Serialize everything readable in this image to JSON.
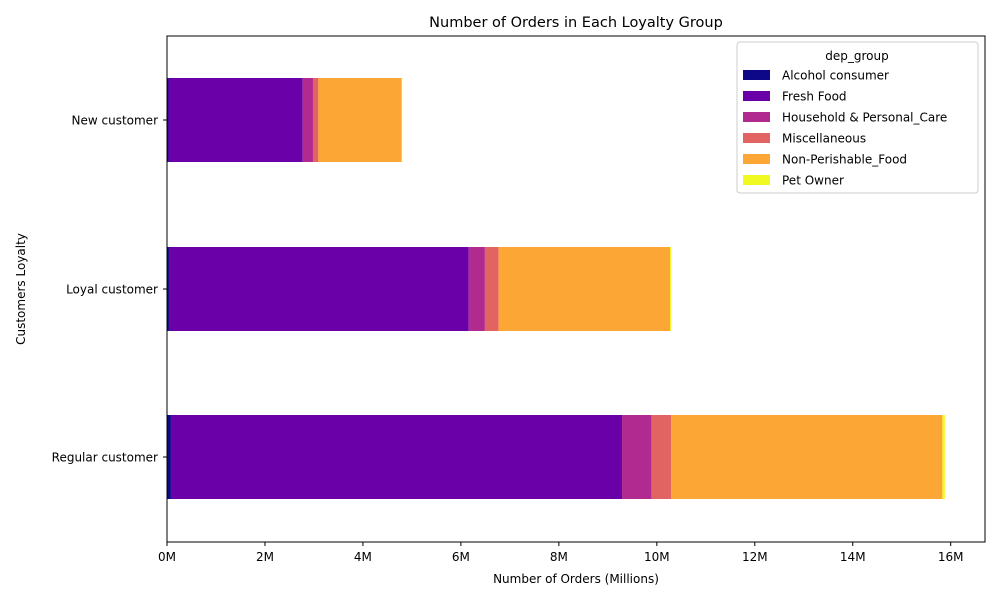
{
  "chart_data": {
    "type": "bar",
    "orientation": "horizontal",
    "stacked": true,
    "title": "Number of Orders in Each Loyalty Group",
    "xlabel": "Number of Orders (Millions)",
    "ylabel": "Customers Loyalty",
    "xlim": [
      0,
      16.7
    ],
    "x_ticks": [
      0,
      2,
      4,
      6,
      8,
      10,
      12,
      14,
      16
    ],
    "x_tick_labels": [
      "0M",
      "2M",
      "4M",
      "6M",
      "8M",
      "10M",
      "12M",
      "14M",
      "16M"
    ],
    "categories": [
      "New customer",
      "Loyal customer",
      "Regular customer"
    ],
    "legend_title": "dep_group",
    "legend_position": "top-right",
    "grid": false,
    "series": [
      {
        "name": "Alcohol consumer",
        "color": "#0d0887",
        "values": [
          0.03,
          0.04,
          0.08
        ]
      },
      {
        "name": "Fresh Food",
        "color": "#6a00a8",
        "values": [
          2.74,
          6.12,
          9.21
        ]
      },
      {
        "name": "Household & Personal_Care",
        "color": "#b12a90",
        "values": [
          0.21,
          0.33,
          0.6
        ]
      },
      {
        "name": "Miscellaneous",
        "color": "#e16462",
        "values": [
          0.11,
          0.28,
          0.4
        ]
      },
      {
        "name": "Non-Perishable_Food",
        "color": "#fca636",
        "values": [
          1.7,
          3.5,
          5.54
        ]
      },
      {
        "name": "Pet Owner",
        "color": "#f0f921",
        "values": [
          0.01,
          0.02,
          0.05
        ]
      }
    ]
  }
}
